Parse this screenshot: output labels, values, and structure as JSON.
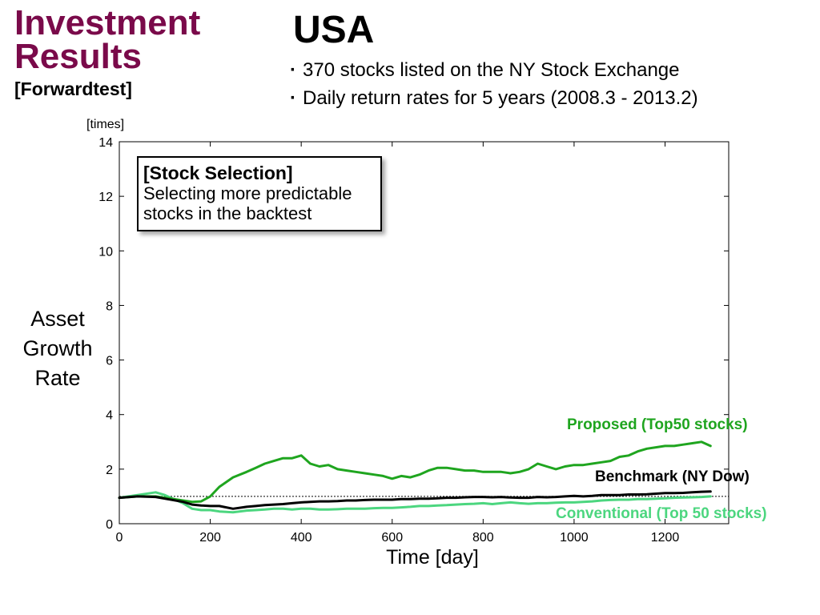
{
  "slide": {
    "title_line1": "Investment",
    "title_line2": "Results",
    "subtitle": "[Forwardtest]",
    "region": "USA",
    "bullets": [
      "370 stocks listed on the NY Stock Exchange",
      "Daily return rates for 5 years (2008.3 - 2013.2)"
    ]
  },
  "callout": {
    "heading": "[Stock Selection]",
    "line1": "Selecting more predictable",
    "line2": "stocks in the backtest"
  },
  "chart_data": {
    "type": "line",
    "title": "",
    "xlabel": "Time [day]",
    "ylabel_lines": [
      "Asset",
      "Growth",
      "Rate"
    ],
    "yunit": "[times]",
    "xlim": [
      0,
      1340
    ],
    "ylim": [
      0,
      14
    ],
    "xticks": [
      0,
      200,
      400,
      600,
      800,
      1000,
      1200
    ],
    "yticks": [
      0,
      2,
      4,
      6,
      8,
      10,
      12,
      14
    ],
    "grid": false,
    "reference_line": 1.0,
    "series": [
      {
        "name": "Proposed (Top50 stocks)",
        "color": "#1fa51f",
        "x": [
          0,
          40,
          80,
          100,
          140,
          160,
          180,
          200,
          220,
          250,
          280,
          300,
          320,
          340,
          360,
          380,
          400,
          420,
          440,
          460,
          480,
          500,
          520,
          540,
          560,
          580,
          600,
          620,
          640,
          660,
          680,
          700,
          720,
          740,
          760,
          780,
          800,
          820,
          840,
          860,
          880,
          900,
          920,
          940,
          960,
          980,
          1000,
          1020,
          1040,
          1060,
          1080,
          1100,
          1120,
          1140,
          1160,
          1180,
          1200,
          1220,
          1240,
          1260,
          1280,
          1300
        ],
        "values": [
          0.95,
          1.0,
          1.0,
          0.95,
          0.85,
          0.8,
          0.82,
          1.0,
          1.35,
          1.7,
          1.9,
          2.05,
          2.2,
          2.3,
          2.4,
          2.4,
          2.5,
          2.2,
          2.1,
          2.15,
          2.0,
          1.95,
          1.9,
          1.85,
          1.8,
          1.75,
          1.65,
          1.75,
          1.7,
          1.8,
          1.95,
          2.05,
          2.05,
          2.0,
          1.95,
          1.95,
          1.9,
          1.9,
          1.9,
          1.85,
          1.9,
          2.0,
          2.2,
          2.1,
          2.0,
          2.1,
          2.15,
          2.15,
          2.2,
          2.25,
          2.3,
          2.45,
          2.5,
          2.65,
          2.75,
          2.8,
          2.85,
          2.85,
          2.9,
          2.95,
          3.0,
          2.85
        ]
      },
      {
        "name": "Benchmark (NY Dow)",
        "color": "#000000",
        "x": [
          0,
          40,
          80,
          100,
          140,
          160,
          180,
          200,
          220,
          250,
          280,
          300,
          320,
          340,
          360,
          380,
          400,
          420,
          440,
          460,
          480,
          500,
          520,
          540,
          560,
          580,
          600,
          620,
          640,
          660,
          680,
          700,
          720,
          740,
          760,
          780,
          800,
          820,
          840,
          860,
          880,
          900,
          920,
          940,
          960,
          980,
          1000,
          1020,
          1040,
          1060,
          1080,
          1100,
          1120,
          1140,
          1160,
          1180,
          1200,
          1220,
          1240,
          1260,
          1280,
          1300
        ],
        "values": [
          0.95,
          1.0,
          0.98,
          0.92,
          0.8,
          0.7,
          0.67,
          0.65,
          0.65,
          0.55,
          0.62,
          0.65,
          0.68,
          0.7,
          0.72,
          0.75,
          0.78,
          0.8,
          0.82,
          0.82,
          0.83,
          0.85,
          0.85,
          0.87,
          0.88,
          0.88,
          0.88,
          0.9,
          0.9,
          0.92,
          0.92,
          0.93,
          0.95,
          0.95,
          0.97,
          0.98,
          0.98,
          0.97,
          0.98,
          0.96,
          0.95,
          0.95,
          0.98,
          0.97,
          0.98,
          1.0,
          1.02,
          1.0,
          1.02,
          1.05,
          1.05,
          1.05,
          1.07,
          1.07,
          1.08,
          1.1,
          1.12,
          1.12,
          1.13,
          1.15,
          1.17,
          1.18
        ]
      },
      {
        "name": "Conventional (Top 50 stocks)",
        "color": "#4cd67f",
        "x": [
          0,
          40,
          80,
          100,
          140,
          160,
          180,
          200,
          220,
          250,
          280,
          300,
          320,
          340,
          360,
          380,
          400,
          420,
          440,
          460,
          480,
          500,
          520,
          540,
          560,
          580,
          600,
          620,
          640,
          660,
          680,
          700,
          720,
          740,
          760,
          780,
          800,
          820,
          840,
          860,
          880,
          900,
          920,
          940,
          960,
          980,
          1000,
          1020,
          1040,
          1060,
          1080,
          1100,
          1120,
          1140,
          1160,
          1180,
          1200,
          1220,
          1240,
          1260,
          1280,
          1300
        ],
        "values": [
          0.95,
          1.05,
          1.15,
          1.05,
          0.75,
          0.55,
          0.5,
          0.5,
          0.45,
          0.42,
          0.48,
          0.5,
          0.52,
          0.55,
          0.55,
          0.52,
          0.55,
          0.55,
          0.52,
          0.52,
          0.53,
          0.55,
          0.55,
          0.55,
          0.57,
          0.58,
          0.58,
          0.6,
          0.62,
          0.65,
          0.65,
          0.67,
          0.68,
          0.7,
          0.72,
          0.73,
          0.75,
          0.72,
          0.75,
          0.78,
          0.75,
          0.73,
          0.75,
          0.75,
          0.77,
          0.78,
          0.78,
          0.8,
          0.82,
          0.85,
          0.87,
          0.88,
          0.88,
          0.9,
          0.9,
          0.92,
          0.93,
          0.95,
          0.96,
          0.97,
          0.98,
          1.0
        ]
      }
    ]
  }
}
